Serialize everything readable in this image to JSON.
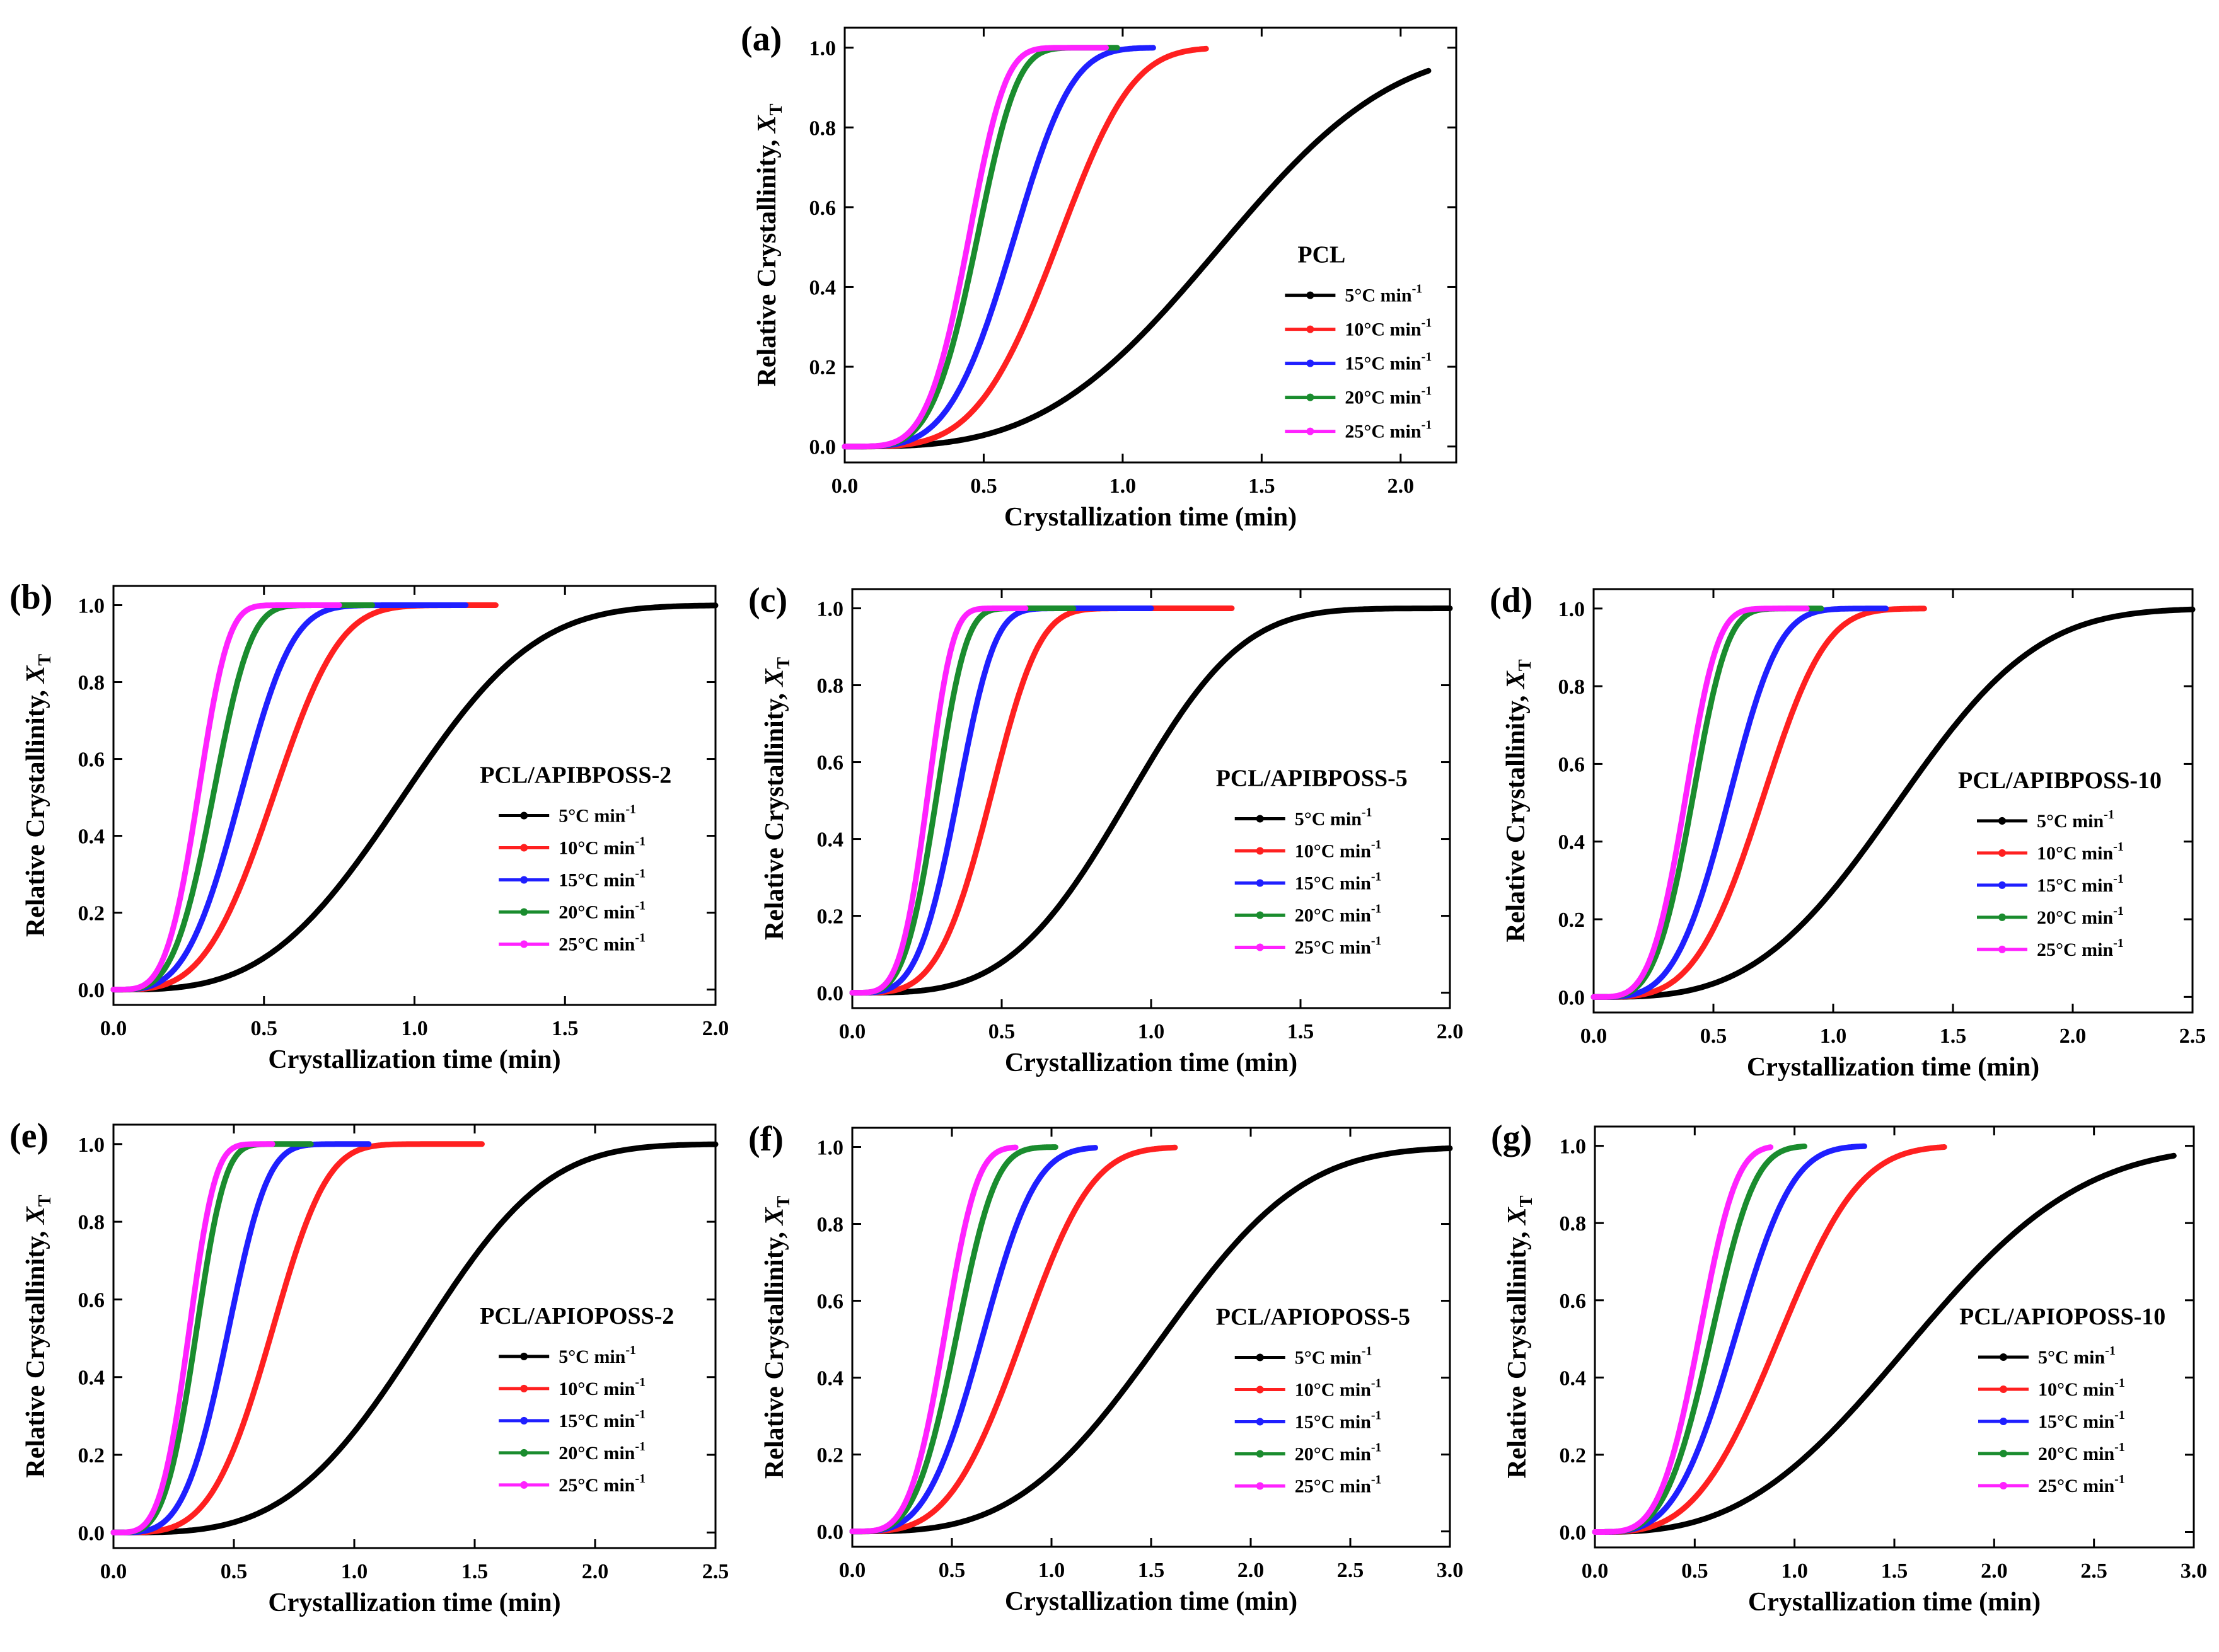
{
  "figure": {
    "ylabel_main": "Relative Crystallinity, ",
    "ylabel_var": "X",
    "ylabel_sub": "T",
    "xlabel": "Crystallization time (min)",
    "rate_labels": [
      "5°C min",
      "10°C min",
      "15°C min",
      "20°C min",
      "25°C min"
    ],
    "rate_superscript": "-1",
    "rate_colors": [
      "#000000",
      "#ff2020",
      "#1f1fff",
      "#1a8c2e",
      "#ff22ff"
    ]
  },
  "chart_data": [
    {
      "type": "line",
      "panel": "(a)",
      "title": "PCL",
      "xlim": [
        0,
        2.2
      ],
      "ylim": [
        0,
        1.05
      ],
      "xticks": [
        "0.0",
        "0.5",
        "1.0",
        "1.5",
        "2.0"
      ],
      "yticks": [
        "0.0",
        "0.2",
        "0.4",
        "0.6",
        "0.8",
        "1.0"
      ],
      "series": [
        {
          "name": "5°C min-1",
          "t_half": 1.35,
          "n": 3.2,
          "t_end": 2.1
        },
        {
          "name": "10°C min-1",
          "t_half": 0.76,
          "n": 4.0,
          "t_end": 1.3
        },
        {
          "name": "15°C min-1",
          "t_half": 0.6,
          "n": 4.0,
          "t_end": 1.11
        },
        {
          "name": "20°C min-1",
          "t_half": 0.47,
          "n": 4.5,
          "t_end": 0.98
        },
        {
          "name": "25°C min-1",
          "t_half": 0.44,
          "n": 4.6,
          "t_end": 0.94
        }
      ]
    },
    {
      "type": "line",
      "panel": "(b)",
      "title": "PCL/APIBPOSS-2",
      "xlim": [
        0,
        2.0
      ],
      "ylim": [
        0,
        1.05
      ],
      "xticks": [
        "0.0",
        "0.5",
        "1.0",
        "1.5",
        "2.0"
      ],
      "yticks": [
        "0.0",
        "0.2",
        "0.4",
        "0.6",
        "0.8",
        "1.0"
      ],
      "series": [
        {
          "name": "5°C min-1",
          "t_half": 0.96,
          "n": 3.2,
          "t_end": 2.0
        },
        {
          "name": "10°C min-1",
          "t_half": 0.53,
          "n": 3.5,
          "t_end": 1.27
        },
        {
          "name": "15°C min-1",
          "t_half": 0.42,
          "n": 3.5,
          "t_end": 1.17
        },
        {
          "name": "20°C min-1",
          "t_half": 0.33,
          "n": 3.8,
          "t_end": 0.86
        },
        {
          "name": "25°C min-1",
          "t_half": 0.28,
          "n": 4.0,
          "t_end": 0.75
        }
      ]
    },
    {
      "type": "line",
      "panel": "(c)",
      "title": "PCL/APIBPOSS-5",
      "xlim": [
        0,
        2.0
      ],
      "ylim": [
        0,
        1.05
      ],
      "xticks": [
        "0.0",
        "0.5",
        "1.0",
        "1.5",
        "2.0"
      ],
      "yticks": [
        "0.0",
        "0.2",
        "0.4",
        "0.6",
        "0.8",
        "1.0"
      ],
      "series": [
        {
          "name": "5°C min-1",
          "t_half": 0.92,
          "n": 3.5,
          "t_end": 2.0
        },
        {
          "name": "10°C min-1",
          "t_half": 0.46,
          "n": 4.0,
          "t_end": 1.27
        },
        {
          "name": "15°C min-1",
          "t_half": 0.35,
          "n": 4.0,
          "t_end": 1.0
        },
        {
          "name": "20°C min-1",
          "t_half": 0.28,
          "n": 4.0,
          "t_end": 0.74
        },
        {
          "name": "25°C min-1",
          "t_half": 0.25,
          "n": 4.2,
          "t_end": 0.58
        }
      ]
    },
    {
      "type": "line",
      "panel": "(d)",
      "title": "PCL/APIBPOSS-10",
      "xlim": [
        0,
        2.5
      ],
      "ylim": [
        0,
        1.05
      ],
      "xticks": [
        "0.0",
        "0.5",
        "1.0",
        "1.5",
        "2.0",
        "2.5"
      ],
      "yticks": [
        "0.0",
        "0.2",
        "0.4",
        "0.6",
        "0.8",
        "1.0"
      ],
      "series": [
        {
          "name": "5°C min-1",
          "t_half": 1.27,
          "n": 3.2,
          "t_end": 2.5
        },
        {
          "name": "10°C min-1",
          "t_half": 0.7,
          "n": 3.8,
          "t_end": 1.38
        },
        {
          "name": "15°C min-1",
          "t_half": 0.56,
          "n": 3.8,
          "t_end": 1.22
        },
        {
          "name": "20°C min-1",
          "t_half": 0.41,
          "n": 4.0,
          "t_end": 0.95
        },
        {
          "name": "25°C min-1",
          "t_half": 0.38,
          "n": 4.0,
          "t_end": 0.89
        }
      ]
    },
    {
      "type": "line",
      "panel": "(e)",
      "title": "PCL/APIOPOSS-2",
      "xlim": [
        0,
        2.5
      ],
      "ylim": [
        0,
        1.05
      ],
      "xticks": [
        "0.0",
        "0.5",
        "1.0",
        "1.5",
        "2.0",
        "2.5"
      ],
      "yticks": [
        "0.0",
        "0.2",
        "0.4",
        "0.6",
        "0.8",
        "1.0"
      ],
      "series": [
        {
          "name": "5°C min-1",
          "t_half": 1.27,
          "n": 3.5,
          "t_end": 2.5
        },
        {
          "name": "10°C min-1",
          "t_half": 0.65,
          "n": 4.0,
          "t_end": 1.53
        },
        {
          "name": "15°C min-1",
          "t_half": 0.47,
          "n": 4.0,
          "t_end": 1.06
        },
        {
          "name": "20°C min-1",
          "t_half": 0.34,
          "n": 4.0,
          "t_end": 0.82
        },
        {
          "name": "25°C min-1",
          "t_half": 0.31,
          "n": 4.0,
          "t_end": 0.66
        }
      ]
    },
    {
      "type": "line",
      "panel": "(f)",
      "title": "PCL/APIOPOSS-5",
      "xlim": [
        0,
        3.0
      ],
      "ylim": [
        0,
        1.05
      ],
      "xticks": [
        "0.0",
        "0.5",
        "1.0",
        "1.5",
        "2.0",
        "2.5",
        "3.0"
      ],
      "yticks": [
        "0.0",
        "0.2",
        "0.4",
        "0.6",
        "0.8",
        "1.0"
      ],
      "series": [
        {
          "name": "5°C min-1",
          "t_half": 1.55,
          "n": 3.2,
          "t_end": 3.0
        },
        {
          "name": "10°C min-1",
          "t_half": 0.85,
          "n": 3.5,
          "t_end": 1.62
        },
        {
          "name": "15°C min-1",
          "t_half": 0.65,
          "n": 3.5,
          "t_end": 1.22
        },
        {
          "name": "20°C min-1",
          "t_half": 0.52,
          "n": 3.8,
          "t_end": 1.02
        },
        {
          "name": "25°C min-1",
          "t_half": 0.46,
          "n": 4.0,
          "t_end": 0.82
        }
      ]
    },
    {
      "type": "line",
      "panel": "(g)",
      "title": "PCL/APIOPOSS-10",
      "xlim": [
        0,
        3.0
      ],
      "ylim": [
        0,
        1.05
      ],
      "xticks": [
        "0.0",
        "0.5",
        "1.0",
        "1.5",
        "2.0",
        "2.5",
        "3.0"
      ],
      "yticks": [
        "0.0",
        "0.2",
        "0.4",
        "0.6",
        "0.8",
        "1.0"
      ],
      "series": [
        {
          "name": "5°C min-1",
          "t_half": 1.6,
          "n": 2.8,
          "t_end": 2.9
        },
        {
          "name": "10°C min-1",
          "t_half": 0.92,
          "n": 3.3,
          "t_end": 1.75
        },
        {
          "name": "15°C min-1",
          "t_half": 0.7,
          "n": 3.5,
          "t_end": 1.35
        },
        {
          "name": "20°C min-1",
          "t_half": 0.58,
          "n": 3.8,
          "t_end": 1.05
        },
        {
          "name": "25°C min-1",
          "t_half": 0.52,
          "n": 4.0,
          "t_end": 0.88
        }
      ]
    }
  ]
}
